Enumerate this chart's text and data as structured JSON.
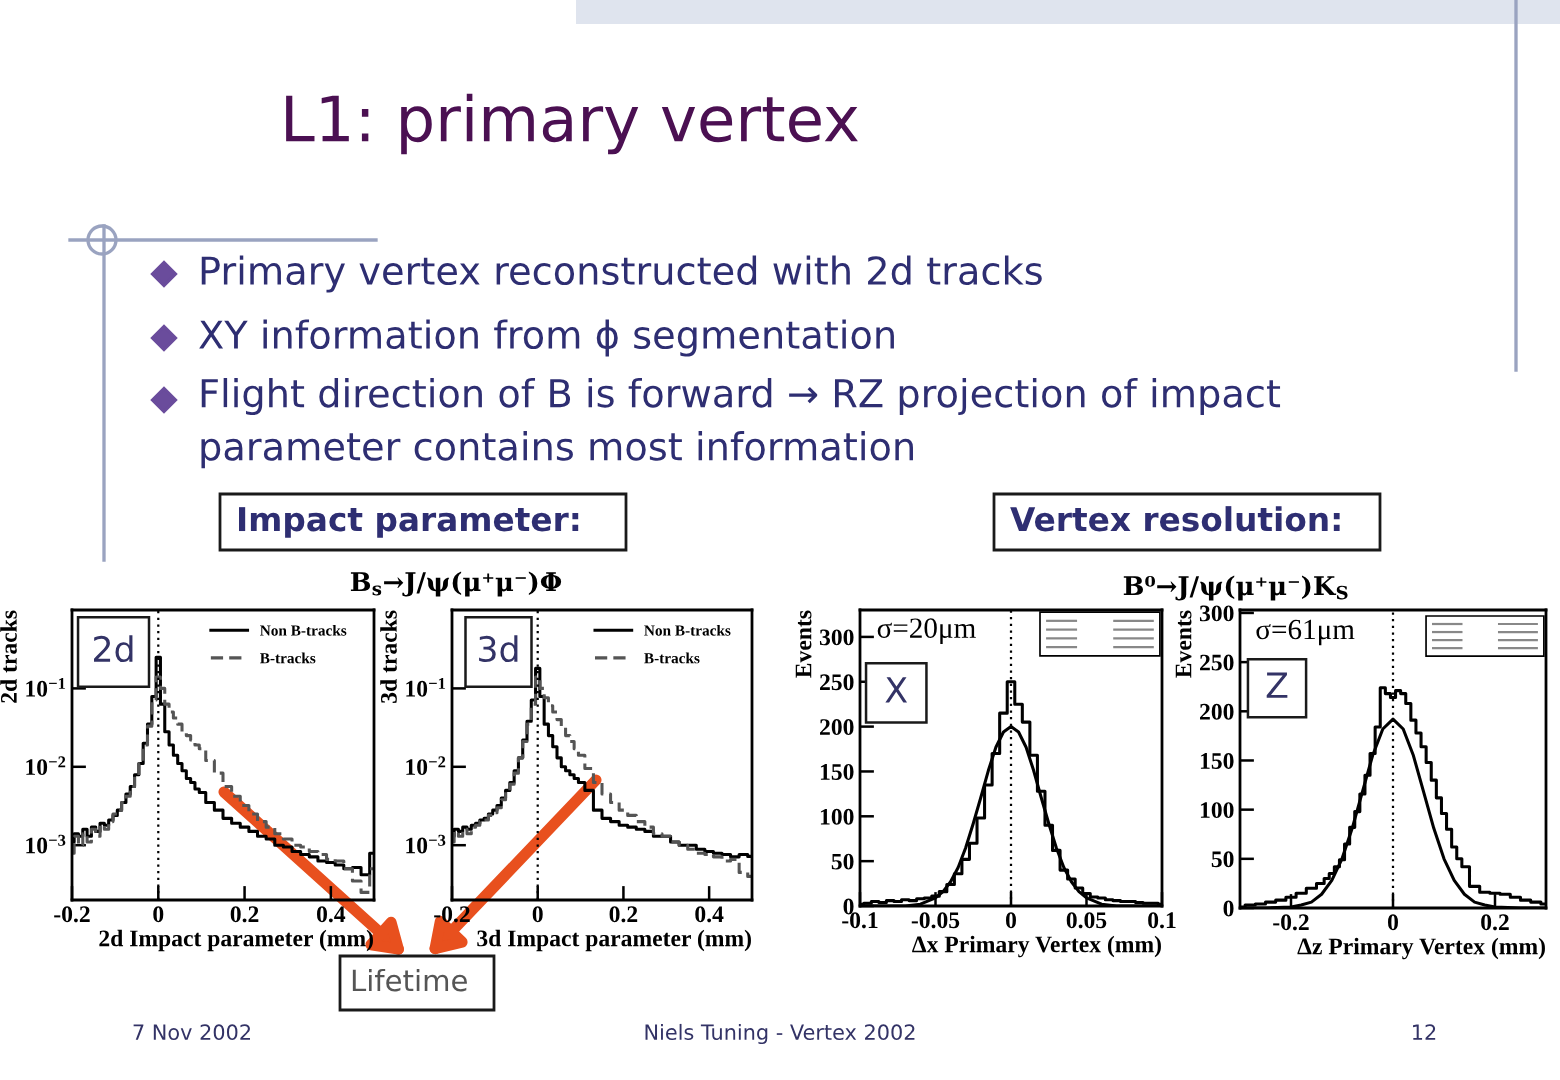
{
  "chart_data": [
    {
      "type": "other",
      "title": "L1: primary vertex",
      "annotations": [
        "Primary vertex reconstructed with 2d tracks",
        "XY information from ϕ segmentation",
        "Flight direction of B is forward → RZ projection of impact parameter contains most information",
        "Impact parameter:",
        "Vertex resolution:",
        "Lifetime",
        "7 Nov 2002",
        "Niels Tuning - Vertex 2002",
        "12"
      ]
    },
    {
      "type": "step",
      "xlabel": "2d Impact parameter (mm)",
      "ylabel": "2d tracks",
      "log": true,
      "xlim": [
        -0.2,
        0.5
      ],
      "xticks": [
        -0.2,
        0,
        0.2,
        0.4
      ],
      "ylim": [
        0.0002,
        1
      ],
      "yticks": [
        {
          "value": 0.001,
          "label": "10$^{−3}$"
        },
        {
          "value": 0.01,
          "label": "10$^{−2}$"
        },
        {
          "value": 0.1,
          "label": "10$^{−1}$"
        }
      ],
      "legend": "top right",
      "ref_lines": [
        {
          "axis": "x",
          "value": 0,
          "color": "#000000",
          "line_style": "dotted"
        }
      ],
      "annotations": [
        "2d"
      ],
      "series": [
        {
          "name": "Non B-tracks",
          "color": "#000000",
          "line_style": "solid",
          "x": [
            -0.2,
            -0.19,
            -0.18,
            -0.17,
            -0.16,
            -0.15,
            -0.14,
            -0.13,
            -0.12,
            -0.11,
            -0.1,
            -0.09,
            -0.08,
            -0.07,
            -0.06,
            -0.05,
            -0.04,
            -0.03,
            -0.02,
            -0.01,
            0,
            0.01,
            0.02,
            0.03,
            0.04,
            0.05,
            0.06,
            0.07,
            0.08,
            0.09,
            0.1,
            0.12,
            0.14,
            0.16,
            0.18,
            0.2,
            0.22,
            0.24,
            0.26,
            0.28,
            0.3,
            0.32,
            0.34,
            0.36,
            0.38,
            0.4,
            0.42,
            0.44,
            0.46,
            0.48,
            0.5
          ],
          "values": [
            0.0011,
            0.0014,
            0.0013,
            0.0016,
            0.0013,
            0.0017,
            0.0015,
            0.0019,
            0.0018,
            0.0021,
            0.0024,
            0.0028,
            0.0035,
            0.0045,
            0.0056,
            0.0079,
            0.011,
            0.02,
            0.035,
            0.079,
            0.25,
            0.063,
            0.028,
            0.019,
            0.014,
            0.011,
            0.0089,
            0.0071,
            0.0063,
            0.0052,
            0.0047,
            0.0035,
            0.0028,
            0.0022,
            0.0019,
            0.0017,
            0.0015,
            0.0013,
            0.0012,
            0.001,
            0.00095,
            0.00083,
            0.00076,
            0.00071,
            0.00063,
            0.0006,
            0.00056,
            0.0005,
            0.00052,
            0.00042,
            0.00079
          ]
        },
        {
          "name": "B-tracks",
          "color": "#555555",
          "line_style": "dashed",
          "x": [
            -0.2,
            -0.19,
            -0.18,
            -0.17,
            -0.16,
            -0.15,
            -0.14,
            -0.13,
            -0.12,
            -0.11,
            -0.1,
            -0.09,
            -0.08,
            -0.07,
            -0.06,
            -0.05,
            -0.04,
            -0.03,
            -0.02,
            -0.01,
            0,
            0.01,
            0.02,
            0.03,
            0.04,
            0.05,
            0.06,
            0.07,
            0.08,
            0.09,
            0.1,
            0.12,
            0.14,
            0.16,
            0.18,
            0.2,
            0.22,
            0.24,
            0.26,
            0.28,
            0.3,
            0.32,
            0.34,
            0.36,
            0.38,
            0.4,
            0.42,
            0.44,
            0.46,
            0.48,
            0.5
          ],
          "values": [
            0.00079,
            0.0013,
            0.001,
            0.0014,
            0.0011,
            0.0016,
            0.0013,
            0.0018,
            0.0016,
            0.002,
            0.0025,
            0.0028,
            0.0035,
            0.0042,
            0.0056,
            0.0076,
            0.011,
            0.019,
            0.033,
            0.071,
            0.14,
            0.1,
            0.063,
            0.05,
            0.042,
            0.035,
            0.028,
            0.025,
            0.022,
            0.019,
            0.017,
            0.012,
            0.0083,
            0.0056,
            0.0042,
            0.0032,
            0.0025,
            0.002,
            0.0017,
            0.0014,
            0.0012,
            0.001,
            0.00095,
            0.00083,
            0.00076,
            0.00066,
            0.00063,
            0.0005,
            0.00035,
            0.00025,
            0.0005
          ]
        }
      ]
    },
    {
      "type": "step",
      "title": "B$_{s}$→J/ψ(μ⁺μ⁻)Φ",
      "xlabel": "3d Impact parameter (mm)",
      "ylabel": "3d tracks",
      "log": true,
      "xlim": [
        -0.2,
        0.5
      ],
      "xticks": [
        -0.2,
        0,
        0.2,
        0.4
      ],
      "ylim": [
        0.0002,
        1
      ],
      "yticks": [
        {
          "value": 0.001,
          "label": "10$^{−3}$"
        },
        {
          "value": 0.01,
          "label": "10$^{−2}$"
        },
        {
          "value": 0.1,
          "label": "10$^{−1}$"
        }
      ],
      "legend": "top right",
      "ref_lines": [
        {
          "axis": "x",
          "value": 0,
          "color": "#000000",
          "line_style": "dotted"
        }
      ],
      "annotations": [
        "3d"
      ],
      "series": [
        {
          "name": "Non B-tracks",
          "color": "#000000",
          "line_style": "solid",
          "x": [
            -0.2,
            -0.19,
            -0.18,
            -0.17,
            -0.16,
            -0.15,
            -0.14,
            -0.13,
            -0.12,
            -0.11,
            -0.1,
            -0.09,
            -0.08,
            -0.07,
            -0.06,
            -0.05,
            -0.04,
            -0.03,
            -0.02,
            -0.01,
            0,
            0.01,
            0.02,
            0.03,
            0.04,
            0.05,
            0.06,
            0.07,
            0.08,
            0.09,
            0.1,
            0.12,
            0.14,
            0.16,
            0.18,
            0.2,
            0.22,
            0.24,
            0.26,
            0.28,
            0.3,
            0.32,
            0.34,
            0.36,
            0.38,
            0.4,
            0.42,
            0.44,
            0.46,
            0.48,
            0.5
          ],
          "values": [
            0.0013,
            0.0016,
            0.0015,
            0.0017,
            0.0016,
            0.0018,
            0.0019,
            0.0021,
            0.0022,
            0.0025,
            0.0028,
            0.0032,
            0.004,
            0.005,
            0.0063,
            0.0089,
            0.013,
            0.022,
            0.038,
            0.071,
            0.18,
            0.079,
            0.035,
            0.025,
            0.018,
            0.013,
            0.01,
            0.0089,
            0.0079,
            0.0071,
            0.0063,
            0.005,
            0.0028,
            0.0022,
            0.002,
            0.0018,
            0.0017,
            0.0016,
            0.0015,
            0.0013,
            0.0013,
            0.0011,
            0.001,
            0.001,
            0.00089,
            0.00083,
            0.00079,
            0.00076,
            0.00071,
            0.00076,
            0.00072
          ]
        },
        {
          "name": "B-tracks",
          "color": "#555555",
          "line_style": "dashed",
          "x": [
            -0.2,
            -0.19,
            -0.18,
            -0.17,
            -0.16,
            -0.15,
            -0.14,
            -0.13,
            -0.12,
            -0.11,
            -0.1,
            -0.09,
            -0.08,
            -0.07,
            -0.06,
            -0.05,
            -0.04,
            -0.03,
            -0.02,
            -0.01,
            0,
            0.01,
            0.02,
            0.03,
            0.04,
            0.05,
            0.06,
            0.07,
            0.08,
            0.09,
            0.1,
            0.12,
            0.14,
            0.16,
            0.18,
            0.2,
            0.22,
            0.24,
            0.26,
            0.28,
            0.3,
            0.32,
            0.34,
            0.36,
            0.38,
            0.4,
            0.42,
            0.44,
            0.46,
            0.48,
            0.5
          ],
          "values": [
            0.0011,
            0.0015,
            0.0013,
            0.0016,
            0.0014,
            0.0017,
            0.0018,
            0.002,
            0.0021,
            0.0024,
            0.0026,
            0.003,
            0.0038,
            0.0048,
            0.006,
            0.0083,
            0.013,
            0.021,
            0.035,
            0.063,
            0.14,
            0.1,
            0.076,
            0.06,
            0.05,
            0.04,
            0.032,
            0.025,
            0.021,
            0.017,
            0.014,
            0.0095,
            0.0063,
            0.0045,
            0.0035,
            0.0028,
            0.0024,
            0.002,
            0.0017,
            0.0014,
            0.0013,
            0.0011,
            0.001,
            0.00089,
            0.00079,
            0.00076,
            0.00071,
            0.00063,
            0.00066,
            0.00045,
            0.0004
          ]
        }
      ]
    },
    {
      "type": "step",
      "title": "B⁰→J/ψ(μ⁺μ⁻)K$_{S}$",
      "xlabel": "Δx Primary Vertex (mm)",
      "ylabel": "Events",
      "xlim": [
        -0.1,
        0.1
      ],
      "xticks": [
        -0.1,
        -0.05,
        0,
        0.05,
        0.1
      ],
      "ylim": [
        0,
        330
      ],
      "yticks": [
        0,
        50,
        100,
        150,
        200,
        250,
        300
      ],
      "ref_lines": [
        {
          "axis": "x",
          "value": 0,
          "color": "#000000",
          "line_style": "dotted"
        }
      ],
      "annotations": [
        "σ=20μm",
        "X"
      ],
      "series": [
        {
          "color": "#000000",
          "x": [
            -0.1,
            -0.095,
            -0.09,
            -0.085,
            -0.08,
            -0.075,
            -0.07,
            -0.065,
            -0.06,
            -0.055,
            -0.05,
            -0.045,
            -0.04,
            -0.035,
            -0.03,
            -0.025,
            -0.02,
            -0.015,
            -0.01,
            -0.005,
            0,
            0.005,
            0.01,
            0.015,
            0.02,
            0.025,
            0.03,
            0.035,
            0.04,
            0.045,
            0.05,
            0.055,
            0.06,
            0.065,
            0.07,
            0.075,
            0.08,
            0.085,
            0.09,
            0.095,
            0.1
          ],
          "values": [
            2,
            3,
            5,
            4,
            6,
            5,
            7,
            6,
            8,
            9,
            11,
            16,
            24,
            36,
            52,
            70,
            98,
            135,
            170,
            215,
            250,
            225,
            205,
            168,
            128,
            90,
            62,
            40,
            30,
            20,
            14,
            10,
            9,
            7,
            6,
            5,
            5,
            4,
            3,
            3,
            2
          ]
        },
        {
          "type": "line",
          "color": "#000000",
          "x": [
            -0.1,
            -0.09,
            -0.08,
            -0.07,
            -0.06,
            -0.05,
            -0.045,
            -0.04,
            -0.035,
            -0.03,
            -0.025,
            -0.02,
            -0.015,
            -0.01,
            -0.005,
            0,
            0.005,
            0.01,
            0.015,
            0.02,
            0.025,
            0.03,
            0.035,
            0.04,
            0.045,
            0.05,
            0.06,
            0.07,
            0.08,
            0.09,
            0.1
          ],
          "values": [
            0,
            0,
            0,
            0,
            2,
            9,
            16,
            27,
            43,
            65,
            92,
            121,
            151,
            177,
            194,
            200,
            194,
            177,
            151,
            121,
            92,
            65,
            43,
            27,
            16,
            9,
            2,
            0,
            0,
            0,
            0
          ]
        }
      ]
    },
    {
      "type": "step",
      "xlabel": "Δz Primary Vertex (mm)",
      "ylabel": "Events",
      "xlim": [
        -0.3,
        0.3
      ],
      "xticks": [
        -0.2,
        0,
        0.2
      ],
      "ylim": [
        0,
        303
      ],
      "yticks": [
        0,
        50,
        100,
        150,
        200,
        250,
        300
      ],
      "ref_lines": [
        {
          "axis": "x",
          "value": 0,
          "color": "#000000",
          "line_style": "dotted"
        }
      ],
      "annotations": [
        "σ=61μm",
        "Z"
      ],
      "series": [
        {
          "color": "#000000",
          "x": [
            -0.3,
            -0.28,
            -0.26,
            -0.24,
            -0.22,
            -0.2,
            -0.18,
            -0.16,
            -0.14,
            -0.13,
            -0.12,
            -0.11,
            -0.1,
            -0.09,
            -0.08,
            -0.07,
            -0.06,
            -0.05,
            -0.04,
            -0.03,
            -0.02,
            -0.01,
            0,
            0.01,
            0.02,
            0.03,
            0.04,
            0.05,
            0.06,
            0.07,
            0.08,
            0.09,
            0.1,
            0.11,
            0.12,
            0.13,
            0.14,
            0.16,
            0.18,
            0.2,
            0.22,
            0.24,
            0.26,
            0.28,
            0.3
          ],
          "values": [
            1,
            3,
            4,
            6,
            8,
            11,
            15,
            20,
            25,
            30,
            35,
            42,
            49,
            65,
            82,
            98,
            116,
            135,
            157,
            184,
            224,
            218,
            214,
            221,
            218,
            208,
            191,
            178,
            164,
            148,
            130,
            112,
            96,
            80,
            62,
            50,
            42,
            22,
            16,
            15,
            14,
            11,
            8,
            6,
            4
          ]
        },
        {
          "type": "line",
          "color": "#000000",
          "x": [
            -0.3,
            -0.25,
            -0.2,
            -0.18,
            -0.16,
            -0.14,
            -0.12,
            -0.1,
            -0.08,
            -0.06,
            -0.04,
            -0.02,
            0,
            0.02,
            0.04,
            0.06,
            0.08,
            0.1,
            0.12,
            0.14,
            0.16,
            0.18,
            0.2,
            0.25,
            0.3
          ],
          "values": [
            0,
            0,
            1,
            3,
            6,
            14,
            28,
            50,
            81,
            118,
            155,
            182,
            192,
            182,
            155,
            118,
            81,
            50,
            28,
            14,
            6,
            3,
            1,
            0,
            0
          ]
        }
      ]
    }
  ]
}
